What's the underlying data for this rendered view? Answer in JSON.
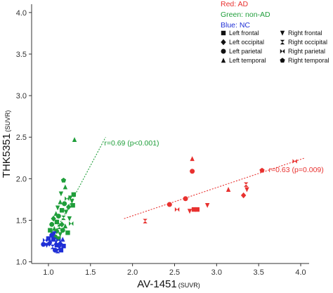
{
  "chart_data": {
    "type": "scatter",
    "xlabel": "AV-1451",
    "xlabel_unit": "(SUVR)",
    "ylabel": "THK5351",
    "ylabel_unit": "(SUVR)",
    "xlim": [
      0.8,
      4.1
    ],
    "ylim": [
      0.98,
      4.1
    ],
    "xticks": [
      "1.0",
      "1.5",
      "2.0",
      "2.5",
      "3.0",
      "3.5",
      "4.0"
    ],
    "yticks": [
      "1.0",
      "1.5",
      "2.0",
      "2.5",
      "3.0",
      "3.5",
      "4.0"
    ],
    "grid": false,
    "legend_placement": "top-right",
    "groups": [
      {
        "label": "Red: AD",
        "color": "#e8312f"
      },
      {
        "label": "Green: non-AD",
        "color": "#1f9e3a"
      },
      {
        "label": "Blue: NC",
        "color": "#1f2fd6"
      }
    ],
    "marker_legend": [
      {
        "label": "Left frontal",
        "shape": "square"
      },
      {
        "label": "Right frontal",
        "shape": "triangle-down"
      },
      {
        "label": "Left occipital",
        "shape": "diamond"
      },
      {
        "label": "Right occipital",
        "shape": "hourglass"
      },
      {
        "label": "Left parietal",
        "shape": "circle"
      },
      {
        "label": "Right parietal",
        "shape": "bowtie"
      },
      {
        "label": "Left temporal",
        "shape": "triangle-up"
      },
      {
        "label": "Right temporal",
        "shape": "pentagon"
      }
    ],
    "fit_lines": [
      {
        "group": "non-AD",
        "color": "#1f9e3a",
        "x": [
          1.05,
          1.68
        ],
        "y": [
          1.3,
          2.5
        ],
        "label": "r=0.69 (p<0.001)"
      },
      {
        "group": "AD",
        "color": "#e8312f",
        "x": [
          1.9,
          4.05
        ],
        "y": [
          1.52,
          2.25
        ],
        "label": "r=0.63 (p=0.009)"
      }
    ],
    "series": [
      {
        "name": "AD",
        "color": "#e8312f",
        "points": [
          {
            "x": 2.15,
            "y": 1.49,
            "m": "hourglass"
          },
          {
            "x": 2.44,
            "y": 1.69,
            "m": "circle"
          },
          {
            "x": 2.53,
            "y": 1.63,
            "m": "bowtie"
          },
          {
            "x": 2.63,
            "y": 1.76,
            "m": "circle"
          },
          {
            "x": 2.68,
            "y": 1.61,
            "m": "triangle-down"
          },
          {
            "x": 2.71,
            "y": 2.24,
            "m": "triangle-up"
          },
          {
            "x": 2.71,
            "y": 2.09,
            "m": "circle"
          },
          {
            "x": 2.73,
            "y": 1.63,
            "m": "square"
          },
          {
            "x": 2.77,
            "y": 1.63,
            "m": "square"
          },
          {
            "x": 2.89,
            "y": 1.68,
            "m": "triangle-down"
          },
          {
            "x": 3.14,
            "y": 1.87,
            "m": "triangle-up"
          },
          {
            "x": 3.32,
            "y": 1.8,
            "m": "diamond"
          },
          {
            "x": 3.35,
            "y": 1.93,
            "m": "hourglass"
          },
          {
            "x": 3.36,
            "y": 1.87,
            "m": "triangle-down"
          },
          {
            "x": 3.54,
            "y": 2.1,
            "m": "pentagon"
          },
          {
            "x": 3.93,
            "y": 2.21,
            "m": "bowtie"
          }
        ]
      },
      {
        "name": "non-AD",
        "color": "#1f9e3a",
        "points": [
          {
            "x": 1.02,
            "y": 1.38,
            "m": "square"
          },
          {
            "x": 1.04,
            "y": 1.45,
            "m": "circle"
          },
          {
            "x": 1.05,
            "y": 1.33,
            "m": "triangle-down"
          },
          {
            "x": 1.06,
            "y": 1.52,
            "m": "diamond"
          },
          {
            "x": 1.07,
            "y": 1.4,
            "m": "triangle-up"
          },
          {
            "x": 1.08,
            "y": 1.3,
            "m": "circle"
          },
          {
            "x": 1.09,
            "y": 1.58,
            "m": "triangle-up"
          },
          {
            "x": 1.1,
            "y": 1.48,
            "m": "square"
          },
          {
            "x": 1.1,
            "y": 1.37,
            "m": "diamond"
          },
          {
            "x": 1.11,
            "y": 1.65,
            "m": "triangle-down"
          },
          {
            "x": 1.12,
            "y": 1.55,
            "m": "circle"
          },
          {
            "x": 1.12,
            "y": 1.28,
            "m": "square"
          },
          {
            "x": 1.13,
            "y": 1.42,
            "m": "hourglass"
          },
          {
            "x": 1.14,
            "y": 1.72,
            "m": "triangle-up"
          },
          {
            "x": 1.14,
            "y": 1.33,
            "m": "triangle-down"
          },
          {
            "x": 1.15,
            "y": 1.82,
            "m": "triangle-down"
          },
          {
            "x": 1.16,
            "y": 1.62,
            "m": "square"
          },
          {
            "x": 1.16,
            "y": 1.45,
            "m": "diamond"
          },
          {
            "x": 1.17,
            "y": 1.38,
            "m": "circle"
          },
          {
            "x": 1.18,
            "y": 1.98,
            "m": "pentagon"
          },
          {
            "x": 1.18,
            "y": 1.53,
            "m": "hourglass"
          },
          {
            "x": 1.19,
            "y": 1.7,
            "m": "circle"
          },
          {
            "x": 1.2,
            "y": 1.9,
            "m": "triangle-up"
          },
          {
            "x": 1.2,
            "y": 1.43,
            "m": "triangle-up"
          },
          {
            "x": 1.21,
            "y": 1.6,
            "m": "triangle-down"
          },
          {
            "x": 1.22,
            "y": 1.76,
            "m": "bowtie"
          },
          {
            "x": 1.23,
            "y": 1.35,
            "m": "square"
          },
          {
            "x": 1.24,
            "y": 1.66,
            "m": "diamond"
          },
          {
            "x": 1.25,
            "y": 1.52,
            "m": "triangle-down"
          },
          {
            "x": 1.26,
            "y": 1.77,
            "m": "triangle-down"
          },
          {
            "x": 1.27,
            "y": 1.46,
            "m": "bowtie"
          },
          {
            "x": 1.28,
            "y": 1.73,
            "m": "triangle-down"
          },
          {
            "x": 1.29,
            "y": 1.68,
            "m": "square"
          },
          {
            "x": 1.3,
            "y": 1.81,
            "m": "square"
          },
          {
            "x": 1.31,
            "y": 2.47,
            "m": "triangle-up"
          }
        ]
      },
      {
        "name": "NC",
        "color": "#1f2fd6",
        "points": [
          {
            "x": 0.94,
            "y": 1.21,
            "m": "circle"
          },
          {
            "x": 0.96,
            "y": 1.26,
            "m": "bowtie"
          },
          {
            "x": 0.98,
            "y": 1.2,
            "m": "triangle-down"
          },
          {
            "x": 1.0,
            "y": 1.28,
            "m": "square"
          },
          {
            "x": 1.01,
            "y": 1.22,
            "m": "diamond"
          },
          {
            "x": 1.02,
            "y": 1.25,
            "m": "triangle-up"
          },
          {
            "x": 1.04,
            "y": 1.32,
            "m": "circle"
          },
          {
            "x": 1.05,
            "y": 1.18,
            "m": "hourglass"
          },
          {
            "x": 1.06,
            "y": 1.27,
            "m": "square"
          },
          {
            "x": 1.07,
            "y": 1.34,
            "m": "triangle-down"
          },
          {
            "x": 1.08,
            "y": 1.14,
            "m": "circle"
          },
          {
            "x": 1.09,
            "y": 1.23,
            "m": "triangle-up"
          },
          {
            "x": 1.1,
            "y": 1.2,
            "m": "square"
          },
          {
            "x": 1.11,
            "y": 1.13,
            "m": "hourglass"
          },
          {
            "x": 1.12,
            "y": 1.26,
            "m": "bowtie"
          },
          {
            "x": 1.13,
            "y": 1.17,
            "m": "triangle-down"
          },
          {
            "x": 1.14,
            "y": 1.22,
            "m": "diamond"
          },
          {
            "x": 1.15,
            "y": 1.14,
            "m": "square"
          },
          {
            "x": 1.17,
            "y": 1.27,
            "m": "triangle-up"
          },
          {
            "x": 1.18,
            "y": 1.19,
            "m": "square"
          }
        ]
      }
    ]
  }
}
